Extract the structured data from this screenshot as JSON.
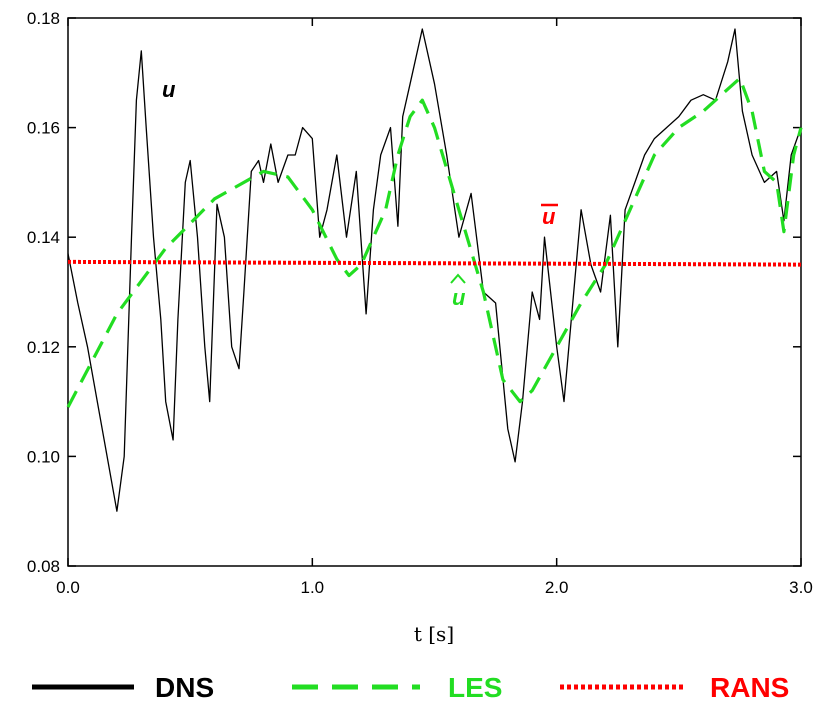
{
  "chart_data": {
    "type": "line",
    "xlabel": "t  [s]",
    "ylabel": "",
    "xlim": [
      0.0,
      3.0
    ],
    "ylim": [
      0.08,
      0.18
    ],
    "x_ticks": [
      "0.0",
      "1.0",
      "2.0",
      "3.0"
    ],
    "y_ticks": [
      "0.08",
      "0.10",
      "0.12",
      "0.14",
      "0.16",
      "0.18"
    ],
    "grid": false,
    "legend_position": "bottom",
    "annotations": [
      {
        "label": "u",
        "series": "DNS",
        "color": "#000000"
      },
      {
        "label": "u",
        "series": "RANS",
        "color": "#ff0000",
        "overbar": true
      },
      {
        "label": "u",
        "series": "LES",
        "color": "#22dd22",
        "hat": true
      }
    ],
    "series": [
      {
        "name": "DNS",
        "color": "#000000",
        "style": "solid",
        "x": [
          0.0,
          0.04,
          0.08,
          0.12,
          0.16,
          0.2,
          0.23,
          0.26,
          0.28,
          0.3,
          0.32,
          0.35,
          0.38,
          0.4,
          0.43,
          0.45,
          0.48,
          0.5,
          0.53,
          0.56,
          0.58,
          0.61,
          0.64,
          0.67,
          0.7,
          0.72,
          0.75,
          0.78,
          0.8,
          0.83,
          0.86,
          0.9,
          0.93,
          0.96,
          1.0,
          1.03,
          1.06,
          1.1,
          1.14,
          1.18,
          1.22,
          1.25,
          1.28,
          1.32,
          1.35,
          1.37,
          1.4,
          1.42,
          1.45,
          1.5,
          1.55,
          1.6,
          1.65,
          1.7,
          1.75,
          1.8,
          1.83,
          1.86,
          1.9,
          1.93,
          1.95,
          1.98,
          2.0,
          2.03,
          2.06,
          2.1,
          2.14,
          2.18,
          2.22,
          2.25,
          2.28,
          2.32,
          2.36,
          2.4,
          2.45,
          2.5,
          2.55,
          2.6,
          2.65,
          2.7,
          2.73,
          2.76,
          2.8,
          2.85,
          2.9,
          2.93,
          2.96,
          3.0
        ],
        "values": [
          0.137,
          0.128,
          0.12,
          0.11,
          0.1,
          0.09,
          0.1,
          0.14,
          0.165,
          0.174,
          0.16,
          0.14,
          0.125,
          0.11,
          0.103,
          0.125,
          0.15,
          0.154,
          0.14,
          0.12,
          0.11,
          0.146,
          0.14,
          0.12,
          0.116,
          0.13,
          0.152,
          0.154,
          0.15,
          0.157,
          0.15,
          0.155,
          0.155,
          0.16,
          0.158,
          0.14,
          0.145,
          0.155,
          0.14,
          0.152,
          0.126,
          0.145,
          0.155,
          0.16,
          0.142,
          0.162,
          0.168,
          0.172,
          0.178,
          0.168,
          0.155,
          0.14,
          0.148,
          0.13,
          0.128,
          0.105,
          0.099,
          0.11,
          0.13,
          0.125,
          0.14,
          0.128,
          0.12,
          0.11,
          0.125,
          0.145,
          0.135,
          0.13,
          0.144,
          0.12,
          0.145,
          0.15,
          0.155,
          0.158,
          0.16,
          0.162,
          0.165,
          0.166,
          0.165,
          0.172,
          0.178,
          0.163,
          0.155,
          0.15,
          0.152,
          0.143,
          0.155,
          0.16
        ]
      },
      {
        "name": "LES",
        "color": "#22dd22",
        "style": "dashed",
        "x": [
          0.0,
          0.2,
          0.4,
          0.6,
          0.8,
          0.9,
          1.0,
          1.1,
          1.15,
          1.2,
          1.3,
          1.35,
          1.4,
          1.45,
          1.5,
          1.6,
          1.7,
          1.78,
          1.85,
          1.9,
          2.0,
          2.1,
          2.2,
          2.3,
          2.4,
          2.5,
          2.6,
          2.7,
          2.75,
          2.8,
          2.85,
          2.9,
          2.93,
          2.97,
          3.0
        ],
        "values": [
          0.109,
          0.126,
          0.138,
          0.147,
          0.152,
          0.151,
          0.145,
          0.136,
          0.133,
          0.135,
          0.145,
          0.155,
          0.162,
          0.165,
          0.16,
          0.145,
          0.13,
          0.114,
          0.11,
          0.112,
          0.12,
          0.128,
          0.135,
          0.145,
          0.155,
          0.16,
          0.163,
          0.167,
          0.169,
          0.163,
          0.152,
          0.15,
          0.141,
          0.155,
          0.16
        ]
      },
      {
        "name": "RANS",
        "color": "#ff0000",
        "style": "dotted",
        "x": [
          0.0,
          3.0
        ],
        "values": [
          0.1355,
          0.135
        ]
      }
    ]
  }
}
